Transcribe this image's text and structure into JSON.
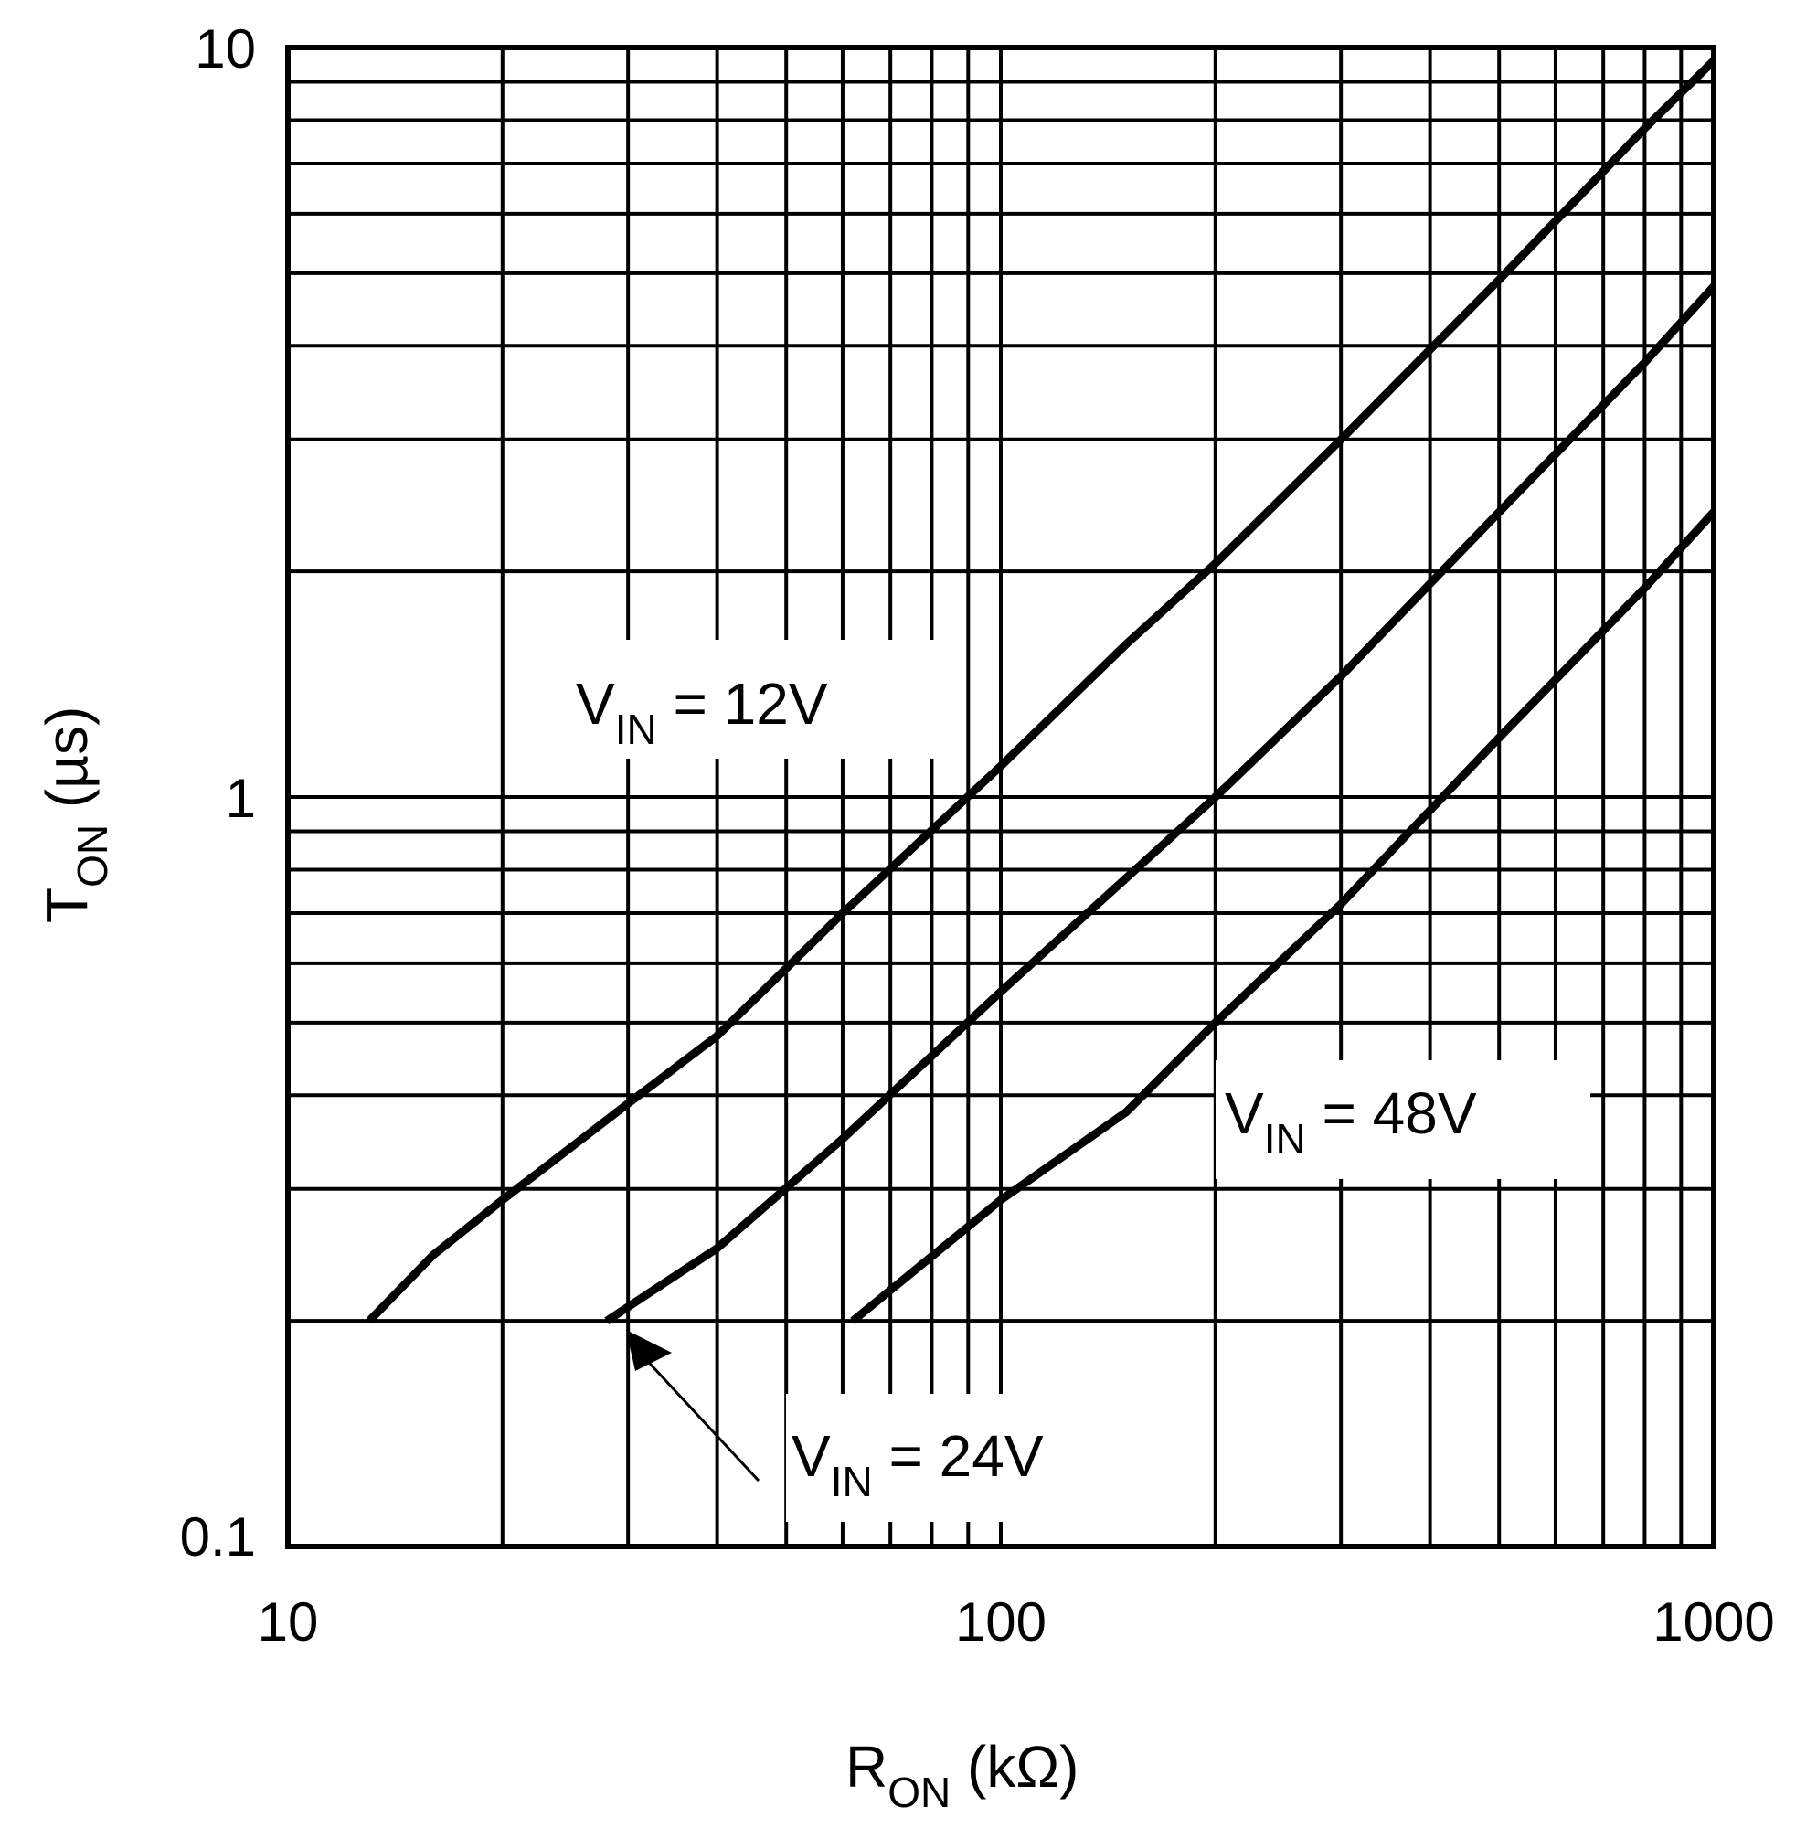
{
  "chart_data": {
    "type": "line",
    "xscale": "log",
    "yscale": "log",
    "xlim": [
      10,
      1000
    ],
    "ylim": [
      0.1,
      10
    ],
    "grid": true,
    "xlabel": {
      "main": "R",
      "sub": "ON",
      "suffix": " (kΩ)"
    },
    "ylabel": {
      "main": "T",
      "sub": "ON",
      "suffix": " (µs)"
    },
    "x_ticks": [
      {
        "value": 10,
        "label": "10"
      },
      {
        "value": 100,
        "label": "100"
      },
      {
        "value": 1000,
        "label": "1000"
      }
    ],
    "y_ticks": [
      {
        "value": 0.1,
        "label": "0.1"
      },
      {
        "value": 1,
        "label": "1"
      },
      {
        "value": 10,
        "label": "10"
      }
    ],
    "series": [
      {
        "name": "VIN = 12V",
        "label": {
          "main": "V",
          "sub": "IN",
          "suffix": " = 12V"
        },
        "points": [
          [
            13,
            0.2
          ],
          [
            16,
            0.245
          ],
          [
            20,
            0.29
          ],
          [
            30,
            0.39
          ],
          [
            40,
            0.48
          ],
          [
            60,
            0.7
          ],
          [
            100,
            1.1
          ],
          [
            150,
            1.6
          ],
          [
            200,
            2.05
          ],
          [
            300,
            3.0
          ],
          [
            500,
            4.9
          ],
          [
            800,
            7.8
          ],
          [
            1000,
            9.6
          ]
        ]
      },
      {
        "name": "VIN = 24V",
        "label": {
          "main": "V",
          "sub": "IN",
          "suffix": " = 24V"
        },
        "points": [
          [
            28,
            0.2
          ],
          [
            40,
            0.25
          ],
          [
            60,
            0.35
          ],
          [
            100,
            0.55
          ],
          [
            150,
            0.78
          ],
          [
            200,
            1.0
          ],
          [
            300,
            1.45
          ],
          [
            500,
            2.4
          ],
          [
            800,
            3.8
          ],
          [
            1000,
            4.8
          ]
        ]
      },
      {
        "name": "VIN = 48V",
        "label": {
          "main": "V",
          "sub": "IN",
          "suffix": " = 48V"
        },
        "points": [
          [
            62,
            0.2
          ],
          [
            100,
            0.29
          ],
          [
            150,
            0.38
          ],
          [
            200,
            0.5
          ],
          [
            300,
            0.72
          ],
          [
            500,
            1.2
          ],
          [
            800,
            1.9
          ],
          [
            1000,
            2.4
          ]
        ]
      }
    ]
  }
}
